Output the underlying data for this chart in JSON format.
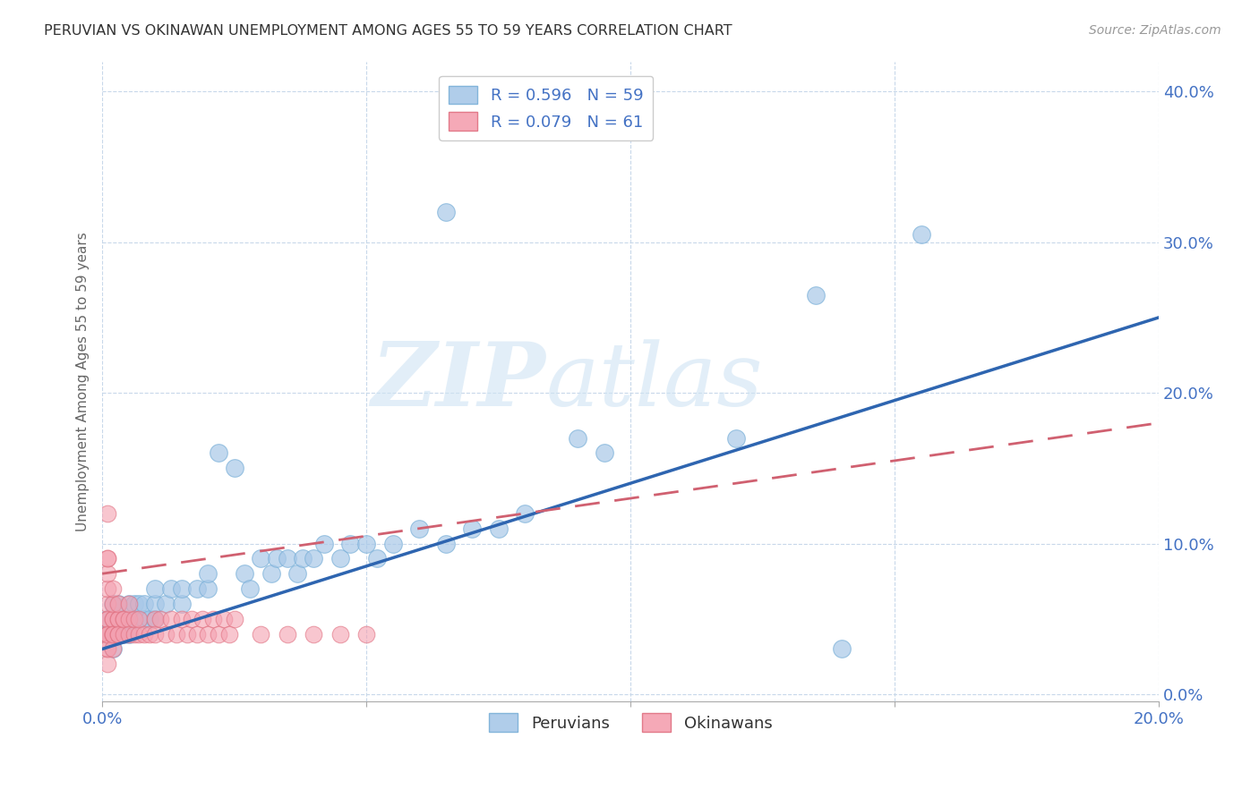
{
  "title": "PERUVIAN VS OKINAWAN UNEMPLOYMENT AMONG AGES 55 TO 59 YEARS CORRELATION CHART",
  "source": "Source: ZipAtlas.com",
  "ylabel": "Unemployment Among Ages 55 to 59 years",
  "xlim": [
    0.0,
    0.2
  ],
  "ylim": [
    -0.005,
    0.42
  ],
  "xticks": [
    0.0,
    0.05,
    0.1,
    0.15,
    0.2
  ],
  "xtick_labels": [
    "0.0%",
    "",
    "",
    "",
    "20.0%"
  ],
  "yticks": [
    0.0,
    0.1,
    0.2,
    0.3,
    0.4
  ],
  "ytick_labels": [
    "0.0%",
    "10.0%",
    "20.0%",
    "30.0%",
    "40.0%"
  ],
  "blue_color": "#a8c8e8",
  "blue_edge_color": "#7ab0d8",
  "pink_color": "#f4a0b0",
  "pink_edge_color": "#e07080",
  "blue_line_color": "#2e65b0",
  "pink_line_color": "#d06070",
  "legend_R1": "R = 0.596",
  "legend_N1": "N = 59",
  "legend_R2": "R = 0.079",
  "legend_N2": "N = 61",
  "legend_label1": "Peruvians",
  "legend_label2": "Okinawans",
  "watermark": "ZIPatlas",
  "axis_color": "#4472c4",
  "grid_color": "#c8d8ea",
  "blue_trend": [
    0.0,
    0.2,
    0.03,
    0.25
  ],
  "pink_trend": [
    0.0,
    0.2,
    0.08,
    0.18
  ],
  "peru_points": [
    [
      0.001,
      0.04
    ],
    [
      0.001,
      0.05
    ],
    [
      0.002,
      0.03
    ],
    [
      0.002,
      0.04
    ],
    [
      0.002,
      0.06
    ],
    [
      0.003,
      0.04
    ],
    [
      0.003,
      0.05
    ],
    [
      0.003,
      0.06
    ],
    [
      0.004,
      0.04
    ],
    [
      0.004,
      0.05
    ],
    [
      0.005,
      0.04
    ],
    [
      0.005,
      0.05
    ],
    [
      0.005,
      0.06
    ],
    [
      0.006,
      0.05
    ],
    [
      0.006,
      0.06
    ],
    [
      0.007,
      0.05
    ],
    [
      0.007,
      0.06
    ],
    [
      0.008,
      0.05
    ],
    [
      0.008,
      0.06
    ],
    [
      0.009,
      0.05
    ],
    [
      0.01,
      0.05
    ],
    [
      0.01,
      0.06
    ],
    [
      0.01,
      0.07
    ],
    [
      0.012,
      0.06
    ],
    [
      0.013,
      0.07
    ],
    [
      0.015,
      0.06
    ],
    [
      0.015,
      0.07
    ],
    [
      0.018,
      0.07
    ],
    [
      0.02,
      0.07
    ],
    [
      0.02,
      0.08
    ],
    [
      0.022,
      0.16
    ],
    [
      0.025,
      0.15
    ],
    [
      0.027,
      0.08
    ],
    [
      0.028,
      0.07
    ],
    [
      0.03,
      0.09
    ],
    [
      0.032,
      0.08
    ],
    [
      0.033,
      0.09
    ],
    [
      0.035,
      0.09
    ],
    [
      0.037,
      0.08
    ],
    [
      0.038,
      0.09
    ],
    [
      0.04,
      0.09
    ],
    [
      0.042,
      0.1
    ],
    [
      0.045,
      0.09
    ],
    [
      0.047,
      0.1
    ],
    [
      0.05,
      0.1
    ],
    [
      0.052,
      0.09
    ],
    [
      0.055,
      0.1
    ],
    [
      0.06,
      0.11
    ],
    [
      0.065,
      0.1
    ],
    [
      0.07,
      0.11
    ],
    [
      0.075,
      0.11
    ],
    [
      0.08,
      0.12
    ],
    [
      0.09,
      0.17
    ],
    [
      0.095,
      0.16
    ],
    [
      0.065,
      0.32
    ],
    [
      0.135,
      0.265
    ],
    [
      0.155,
      0.305
    ],
    [
      0.12,
      0.17
    ],
    [
      0.14,
      0.03
    ]
  ],
  "oki_points": [
    [
      0.001,
      0.04
    ],
    [
      0.001,
      0.05
    ],
    [
      0.001,
      0.06
    ],
    [
      0.001,
      0.07
    ],
    [
      0.001,
      0.08
    ],
    [
      0.001,
      0.09
    ],
    [
      0.001,
      0.04
    ],
    [
      0.001,
      0.05
    ],
    [
      0.001,
      0.03
    ],
    [
      0.001,
      0.02
    ],
    [
      0.001,
      0.03
    ],
    [
      0.001,
      0.04
    ],
    [
      0.002,
      0.05
    ],
    [
      0.002,
      0.04
    ],
    [
      0.002,
      0.05
    ],
    [
      0.002,
      0.06
    ],
    [
      0.002,
      0.07
    ],
    [
      0.002,
      0.04
    ],
    [
      0.002,
      0.03
    ],
    [
      0.002,
      0.04
    ],
    [
      0.003,
      0.05
    ],
    [
      0.003,
      0.04
    ],
    [
      0.003,
      0.05
    ],
    [
      0.003,
      0.06
    ],
    [
      0.003,
      0.04
    ],
    [
      0.004,
      0.05
    ],
    [
      0.004,
      0.04
    ],
    [
      0.004,
      0.05
    ],
    [
      0.005,
      0.05
    ],
    [
      0.005,
      0.04
    ],
    [
      0.005,
      0.06
    ],
    [
      0.006,
      0.04
    ],
    [
      0.006,
      0.05
    ],
    [
      0.007,
      0.04
    ],
    [
      0.007,
      0.05
    ],
    [
      0.008,
      0.04
    ],
    [
      0.009,
      0.04
    ],
    [
      0.01,
      0.05
    ],
    [
      0.01,
      0.04
    ],
    [
      0.011,
      0.05
    ],
    [
      0.012,
      0.04
    ],
    [
      0.013,
      0.05
    ],
    [
      0.014,
      0.04
    ],
    [
      0.015,
      0.05
    ],
    [
      0.016,
      0.04
    ],
    [
      0.017,
      0.05
    ],
    [
      0.018,
      0.04
    ],
    [
      0.019,
      0.05
    ],
    [
      0.02,
      0.04
    ],
    [
      0.021,
      0.05
    ],
    [
      0.022,
      0.04
    ],
    [
      0.023,
      0.05
    ],
    [
      0.024,
      0.04
    ],
    [
      0.025,
      0.05
    ],
    [
      0.03,
      0.04
    ],
    [
      0.035,
      0.04
    ],
    [
      0.04,
      0.04
    ],
    [
      0.045,
      0.04
    ],
    [
      0.05,
      0.04
    ],
    [
      0.001,
      0.12
    ],
    [
      0.001,
      0.09
    ]
  ]
}
